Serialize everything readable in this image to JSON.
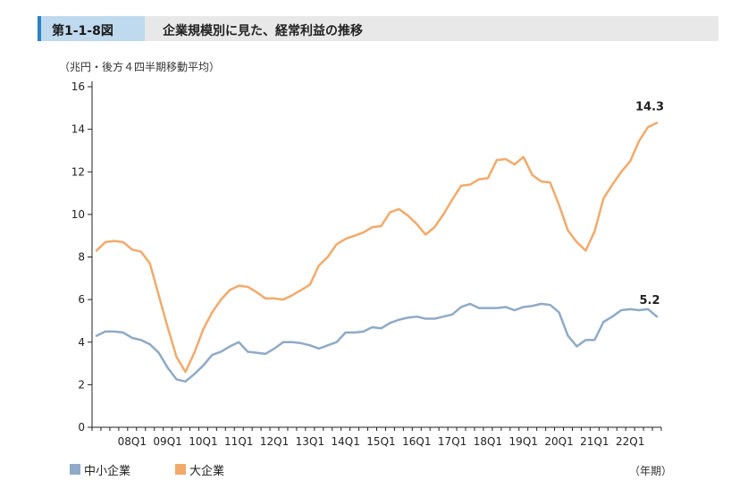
{
  "header": {
    "figure_number": "第1-1-8図",
    "title": "企業規模別に見た、経常利益の推移"
  },
  "unit_label": "（兆円・後方４四半期移動平均）",
  "x_unit_label": "（年期）",
  "colors": {
    "accent": "#2e82c4",
    "sme": "#8faac6",
    "large": "#f2aa6b",
    "axis": "#222222"
  },
  "chart_data": {
    "type": "line",
    "title": "企業規模別に見た、経常利益の推移",
    "ylabel": "（兆円・後方４四半期移動平均）",
    "xlabel": "（年期）",
    "ylim": [
      0,
      16
    ],
    "yticks": [
      0,
      2,
      4,
      6,
      8,
      10,
      12,
      14,
      16
    ],
    "x_tick_labels": [
      "08Q1",
      "09Q1",
      "10Q1",
      "11Q1",
      "12Q1",
      "13Q1",
      "14Q1",
      "15Q1",
      "16Q1",
      "17Q1",
      "18Q1",
      "19Q1",
      "20Q1",
      "21Q1",
      "22Q1"
    ],
    "x_periods": [
      "07Q1",
      "07Q2",
      "07Q3",
      "07Q4",
      "08Q1",
      "08Q2",
      "08Q3",
      "08Q4",
      "09Q1",
      "09Q2",
      "09Q3",
      "09Q4",
      "10Q1",
      "10Q2",
      "10Q3",
      "10Q4",
      "11Q1",
      "11Q2",
      "11Q3",
      "11Q4",
      "12Q1",
      "12Q2",
      "12Q3",
      "12Q4",
      "13Q1",
      "13Q2",
      "13Q3",
      "13Q4",
      "14Q1",
      "14Q2",
      "14Q3",
      "14Q4",
      "15Q1",
      "15Q2",
      "15Q3",
      "15Q4",
      "16Q1",
      "16Q2",
      "16Q3",
      "16Q4",
      "17Q1",
      "17Q2",
      "17Q3",
      "17Q4",
      "18Q1",
      "18Q2",
      "18Q3",
      "18Q4",
      "19Q1",
      "19Q2",
      "19Q3",
      "19Q4",
      "20Q1",
      "20Q2",
      "20Q3",
      "20Q4",
      "21Q1",
      "21Q2",
      "21Q3",
      "21Q4",
      "22Q1",
      "22Q2",
      "22Q3",
      "22Q4"
    ],
    "grid": false,
    "legend_position": "bottom-left",
    "series": [
      {
        "name": "中小企業",
        "color": "#8faac6",
        "end_label": "5.2",
        "values": [
          4.3,
          4.5,
          4.5,
          4.45,
          4.2,
          4.1,
          3.9,
          3.5,
          2.8,
          2.25,
          2.15,
          2.5,
          2.9,
          3.4,
          3.55,
          3.8,
          4.0,
          3.55,
          3.5,
          3.45,
          3.7,
          4.0,
          4.0,
          3.95,
          3.85,
          3.7,
          3.85,
          4.0,
          4.45,
          4.45,
          4.5,
          4.7,
          4.65,
          4.9,
          5.05,
          5.15,
          5.2,
          5.1,
          5.1,
          5.2,
          5.3,
          5.65,
          5.8,
          5.6,
          5.6,
          5.6,
          5.65,
          5.5,
          5.65,
          5.7,
          5.8,
          5.75,
          5.4,
          4.3,
          3.8,
          4.1,
          4.1,
          4.95,
          5.2,
          5.5,
          5.55,
          5.5,
          5.55,
          5.2
        ]
      },
      {
        "name": "大企業",
        "color": "#f2aa6b",
        "end_label": "14.3",
        "values": [
          8.3,
          8.7,
          8.75,
          8.7,
          8.35,
          8.25,
          7.7,
          6.2,
          4.7,
          3.3,
          2.6,
          3.5,
          4.6,
          5.4,
          6.0,
          6.45,
          6.65,
          6.6,
          6.35,
          6.05,
          6.05,
          6.0,
          6.2,
          6.45,
          6.7,
          7.6,
          8.0,
          8.6,
          8.85,
          9.0,
          9.15,
          9.4,
          9.45,
          10.1,
          10.25,
          9.95,
          9.55,
          9.05,
          9.4,
          10.0,
          10.7,
          11.35,
          11.4,
          11.65,
          11.7,
          12.55,
          12.6,
          12.35,
          12.7,
          11.85,
          11.55,
          11.5,
          10.45,
          9.25,
          8.7,
          8.3,
          9.2,
          10.75,
          11.4,
          12.0,
          12.5,
          13.45,
          14.1,
          14.3
        ]
      }
    ]
  }
}
